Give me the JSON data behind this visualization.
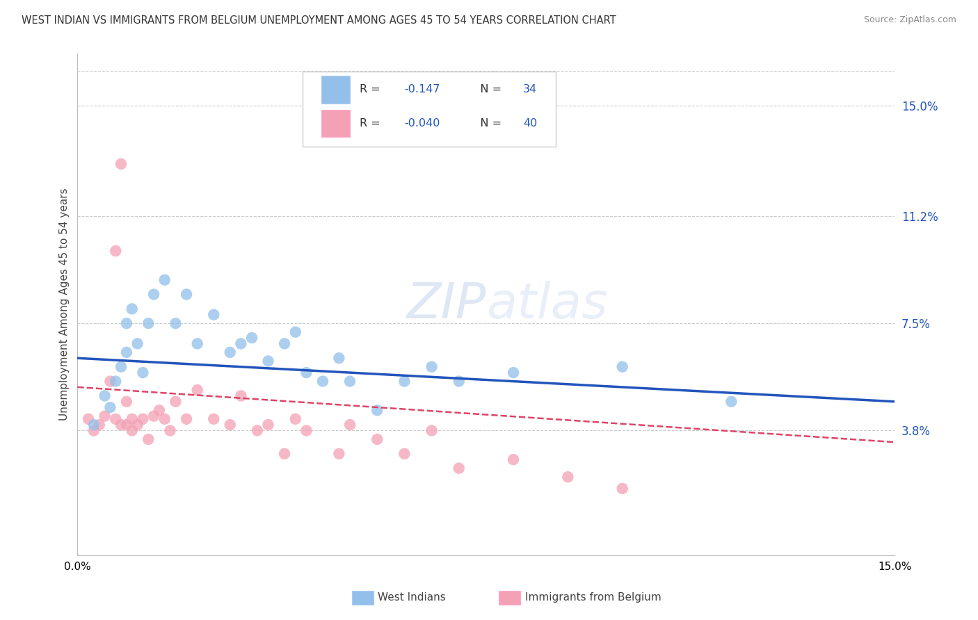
{
  "title": "WEST INDIAN VS IMMIGRANTS FROM BELGIUM UNEMPLOYMENT AMONG AGES 45 TO 54 YEARS CORRELATION CHART",
  "source": "Source: ZipAtlas.com",
  "ylabel": "Unemployment Among Ages 45 to 54 years",
  "yticks_labels": [
    "15.0%",
    "11.2%",
    "7.5%",
    "3.8%"
  ],
  "ytick_vals": [
    0.15,
    0.112,
    0.075,
    0.038
  ],
  "xlim": [
    0.0,
    0.15
  ],
  "ylim": [
    -0.005,
    0.168
  ],
  "legend_r1": "R = ",
  "legend_v1": "-0.147",
  "legend_n1": "N = ",
  "legend_nv1": "34",
  "legend_r2": "R = ",
  "legend_v2": "-0.040",
  "legend_n2": "N = ",
  "legend_nv2": "40",
  "legend_bottom1": "West Indians",
  "legend_bottom2": "Immigrants from Belgium",
  "blue_color": "#92C0EA",
  "pink_color": "#F4A0B5",
  "blue_line_color": "#2255BB",
  "pink_line_color": "#DD4466",
  "watermark_color": "#C8D8EE",
  "west_indians_x": [
    0.003,
    0.005,
    0.006,
    0.007,
    0.008,
    0.009,
    0.009,
    0.01,
    0.011,
    0.012,
    0.013,
    0.014,
    0.016,
    0.018,
    0.02,
    0.022,
    0.025,
    0.028,
    0.03,
    0.032,
    0.035,
    0.038,
    0.04,
    0.042,
    0.045,
    0.048,
    0.05,
    0.055,
    0.06,
    0.065,
    0.07,
    0.08,
    0.1,
    0.12
  ],
  "west_indians_y": [
    0.04,
    0.05,
    0.046,
    0.055,
    0.06,
    0.065,
    0.075,
    0.08,
    0.068,
    0.058,
    0.075,
    0.085,
    0.09,
    0.075,
    0.085,
    0.068,
    0.078,
    0.065,
    0.068,
    0.07,
    0.062,
    0.068,
    0.072,
    0.058,
    0.055,
    0.063,
    0.055,
    0.045,
    0.055,
    0.06,
    0.055,
    0.058,
    0.06,
    0.048
  ],
  "belgium_x": [
    0.002,
    0.003,
    0.004,
    0.005,
    0.006,
    0.007,
    0.007,
    0.008,
    0.008,
    0.009,
    0.009,
    0.01,
    0.01,
    0.011,
    0.012,
    0.013,
    0.014,
    0.015,
    0.016,
    0.017,
    0.018,
    0.02,
    0.022,
    0.025,
    0.028,
    0.03,
    0.033,
    0.035,
    0.038,
    0.04,
    0.042,
    0.048,
    0.05,
    0.055,
    0.06,
    0.065,
    0.07,
    0.08,
    0.09,
    0.1
  ],
  "belgium_y": [
    0.042,
    0.038,
    0.04,
    0.043,
    0.055,
    0.042,
    0.1,
    0.04,
    0.13,
    0.04,
    0.048,
    0.042,
    0.038,
    0.04,
    0.042,
    0.035,
    0.043,
    0.045,
    0.042,
    0.038,
    0.048,
    0.042,
    0.052,
    0.042,
    0.04,
    0.05,
    0.038,
    0.04,
    0.03,
    0.042,
    0.038,
    0.03,
    0.04,
    0.035,
    0.03,
    0.038,
    0.025,
    0.028,
    0.022,
    0.018
  ],
  "blue_line_y0": 0.063,
  "blue_line_y1": 0.048,
  "pink_line_y0": 0.053,
  "pink_line_y1": 0.034
}
